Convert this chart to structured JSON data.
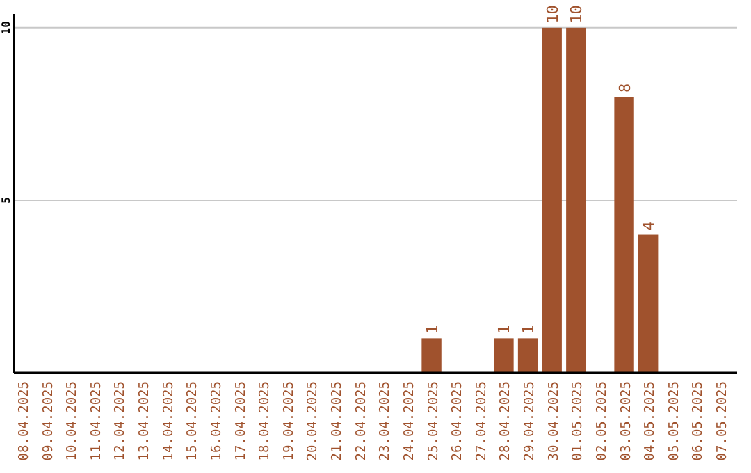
{
  "chart_data": {
    "type": "bar",
    "categories": [
      "08.04.2025",
      "09.04.2025",
      "10.04.2025",
      "11.04.2025",
      "12.04.2025",
      "13.04.2025",
      "14.04.2025",
      "15.04.2025",
      "16.04.2025",
      "17.04.2025",
      "18.04.2025",
      "19.04.2025",
      "20.04.2025",
      "21.04.2025",
      "22.04.2025",
      "23.04.2025",
      "24.04.2025",
      "25.04.2025",
      "26.04.2025",
      "27.04.2025",
      "28.04.2025",
      "29.04.2025",
      "30.04.2025",
      "01.05.2025",
      "02.05.2025",
      "03.05.2025",
      "04.05.2025",
      "05.05.2025",
      "06.05.2025",
      "07.05.2025"
    ],
    "values": [
      0,
      0,
      0,
      0,
      0,
      0,
      0,
      0,
      0,
      0,
      0,
      0,
      0,
      0,
      0,
      0,
      0,
      1,
      0,
      0,
      1,
      1,
      10,
      10,
      0,
      8,
      4,
      0,
      0,
      0
    ],
    "value_labels": [
      null,
      null,
      null,
      null,
      null,
      null,
      null,
      null,
      null,
      null,
      null,
      null,
      null,
      null,
      null,
      null,
      null,
      "1",
      null,
      null,
      "1",
      "1",
      "10",
      "10",
      null,
      "8",
      "4",
      null,
      null,
      null
    ],
    "color": "#a0522d",
    "ylim": [
      0,
      10.4
    ],
    "yticks": [
      5,
      10
    ],
    "grid": "y"
  }
}
